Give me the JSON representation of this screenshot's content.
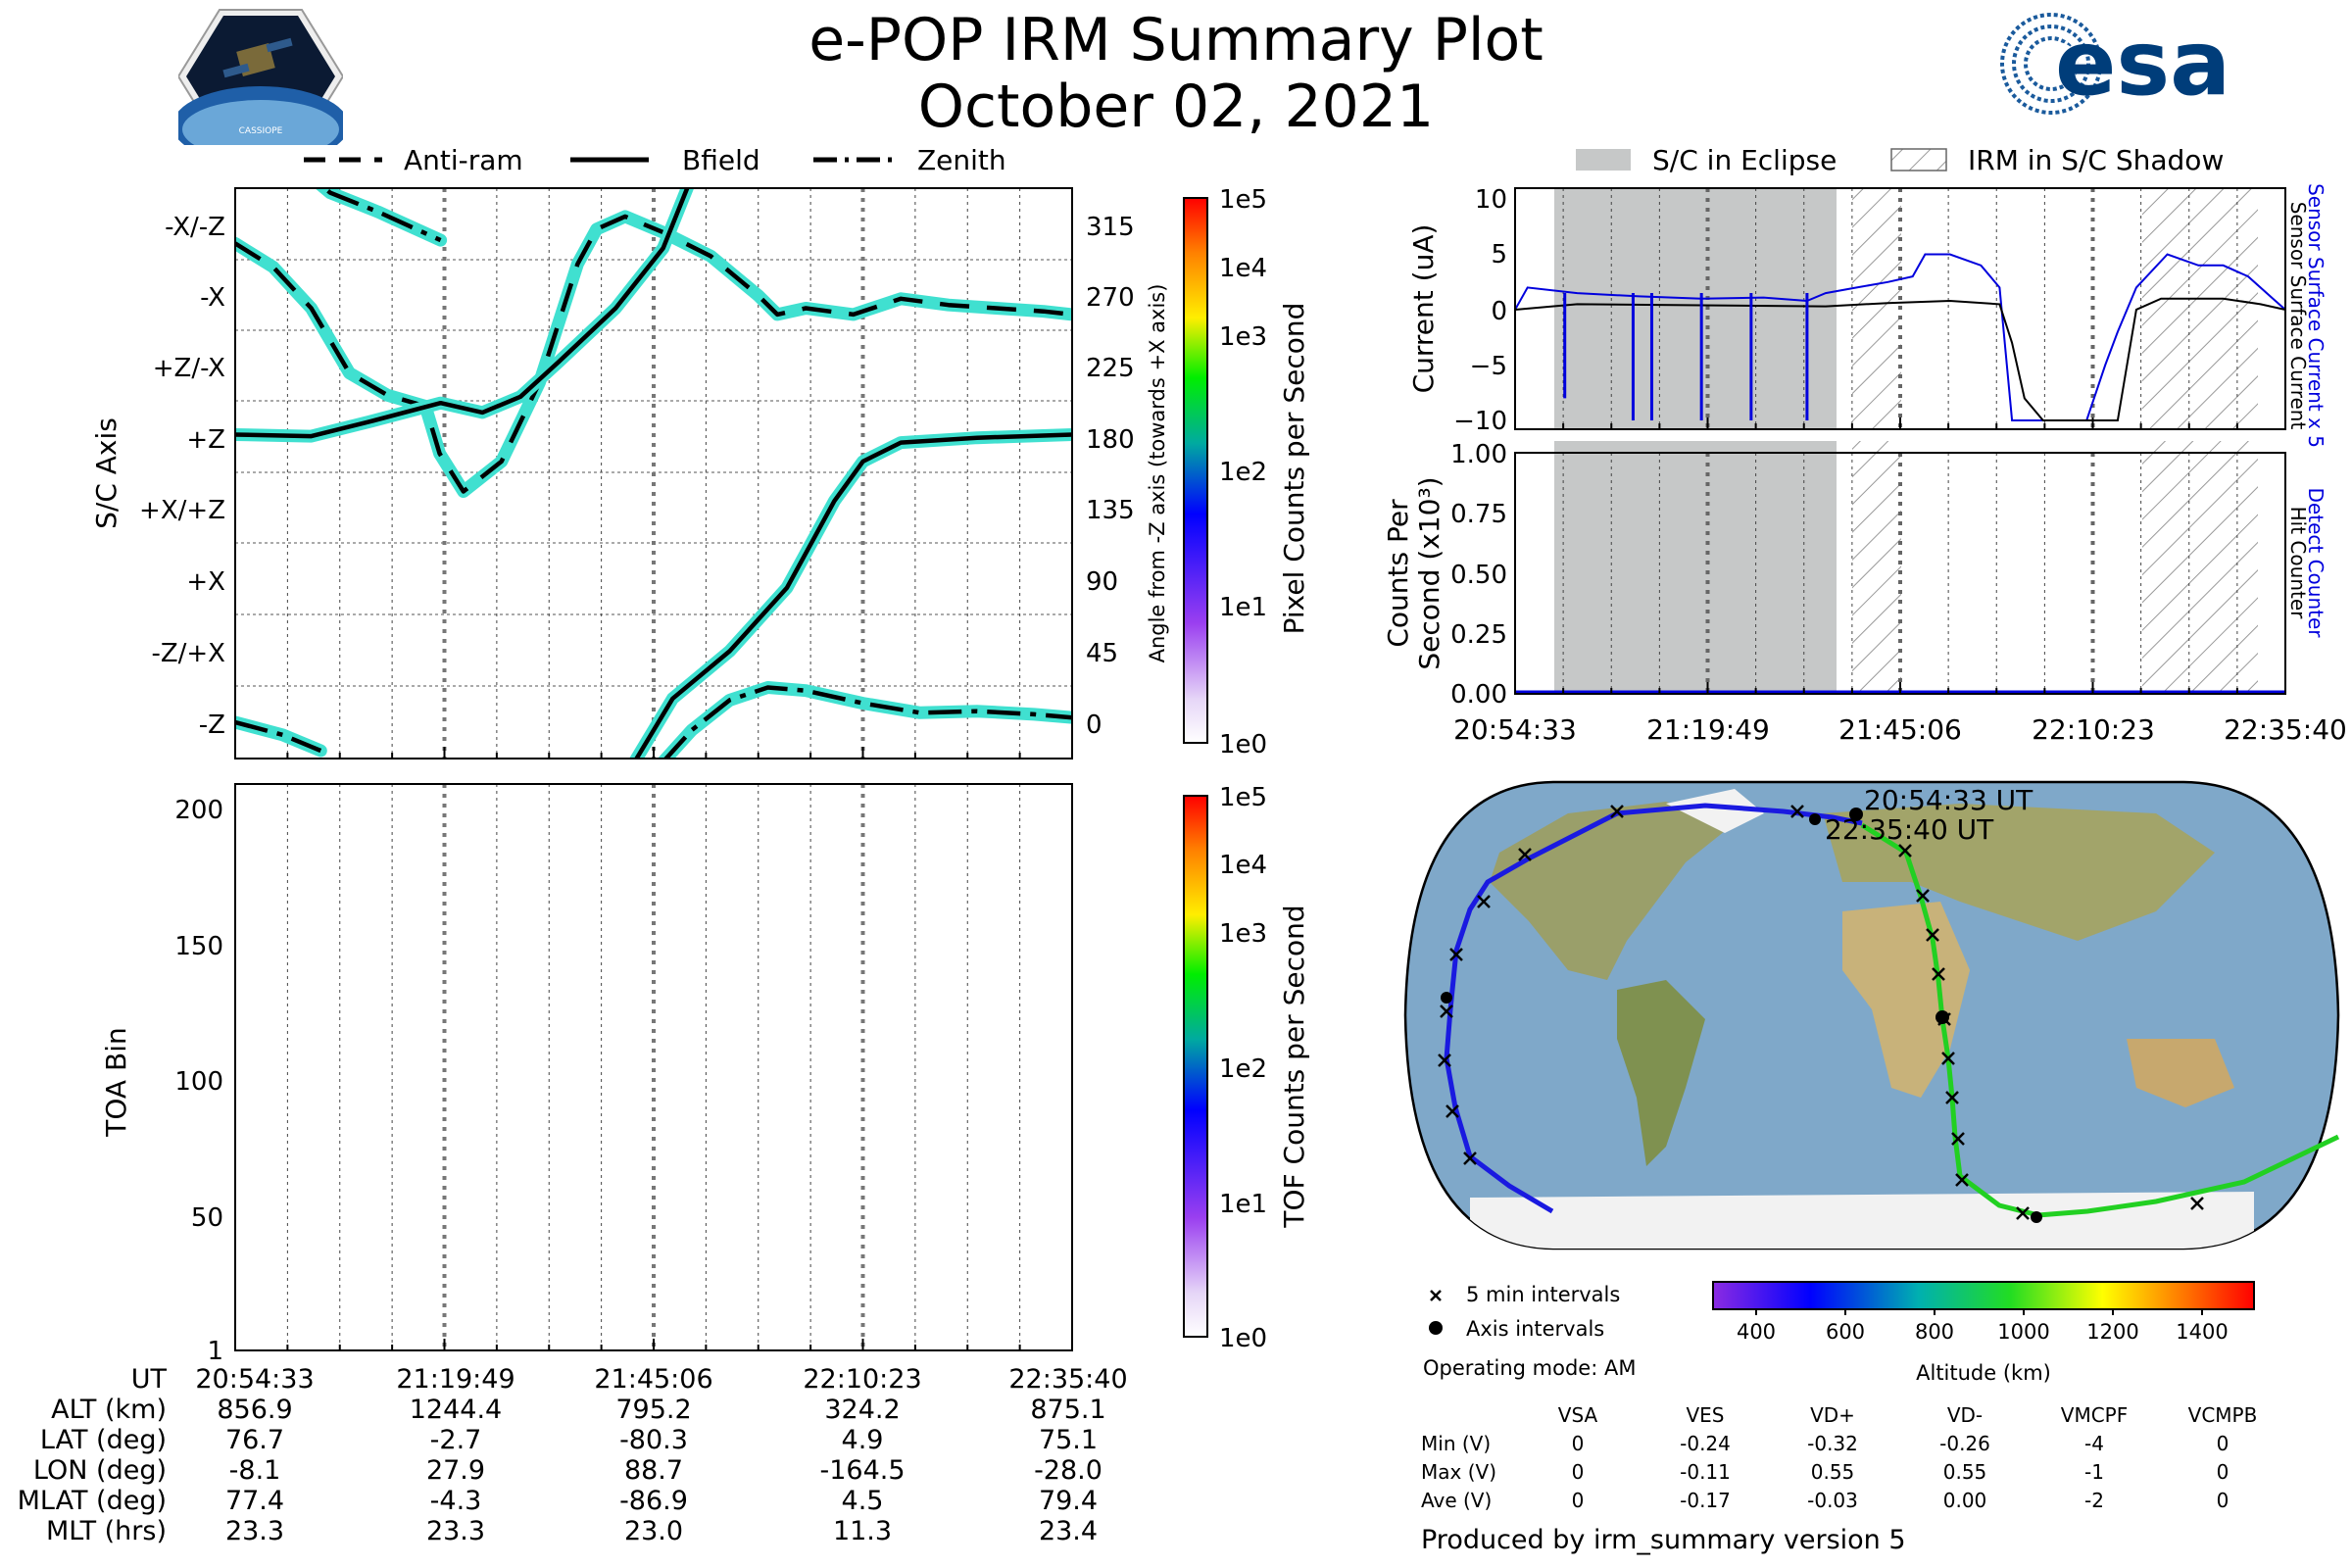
{
  "title": "e-POP IRM Summary Plot",
  "date": "October 02, 2021",
  "logos": {
    "cassiope": "CASSIOPE",
    "esa": "esa"
  },
  "top_legend": [
    "Anti-ram",
    "Bfield",
    "Zenith"
  ],
  "right_legend": [
    "S/C in Eclipse",
    "IRM in S/C Shadow"
  ],
  "colors": {
    "line_fill": "#40e0d0",
    "sensor_current": "#0000dd",
    "surface_current": "#000000",
    "eclipse": "#c6c8c8"
  },
  "time_ticks": [
    "20:54:33",
    "21:19:49",
    "21:45:06",
    "22:10:23",
    "22:35:40"
  ],
  "cbar_ticks": [
    "1e5",
    "1e4",
    "1e3",
    "1e2",
    "1e1",
    "1e0"
  ],
  "panel_axis": {
    "ylabel_left": "S/C Axis",
    "ylabel_right": "Angle from -Z axis (towards +X axis)",
    "cbar_label": "Pixel Counts per Second",
    "left_ticks": [
      "-X/-Z",
      "-X",
      "+Z/-X",
      "+Z",
      "+X/+Z",
      "+X",
      "-Z/+X",
      "-Z"
    ],
    "right_ticks": [
      "315",
      "270",
      "225",
      "180",
      "135",
      "90",
      "45",
      "0"
    ]
  },
  "panel_toa": {
    "ylabel": "TOA Bin",
    "cbar_label": "TOF Counts per Second",
    "ticks": [
      "200",
      "150",
      "100",
      "50",
      "1"
    ]
  },
  "panel_current": {
    "ylabel": "Current (uA)",
    "ticks": [
      "10",
      "5",
      "0",
      "−10",
      "−5"
    ],
    "right_label_1": "Sensor Surface Current x 5",
    "right_label_2": "Sensor Surface Current"
  },
  "panel_counts": {
    "ylabel_1": "Counts Per",
    "ylabel_2": "Second (x10³)",
    "ticks": [
      "1.00",
      "0.75",
      "0.50",
      "0.25",
      "0.00"
    ],
    "right_label_1": "Detect Counter",
    "right_label_2": "Hit Counter"
  },
  "map": {
    "start_label": "20:54:33 UT",
    "end_label": "22:35:40 UT",
    "legend_5min": "5 min intervals",
    "legend_axis": "Axis intervals",
    "operating_mode": "Operating mode: AM",
    "altitude_label": "Altitude (km)",
    "altitude_ticks": [
      "400",
      "600",
      "800",
      "1000",
      "1200",
      "1400"
    ]
  },
  "ephemeris": {
    "labels": [
      "UT",
      "ALT (km)",
      "LAT (deg)",
      "LON (deg)",
      "MLAT (deg)",
      "MLT (hrs)"
    ],
    "columns": [
      [
        "20:54:33",
        "856.9",
        "76.7",
        "-8.1",
        "77.4",
        "23.3"
      ],
      [
        "21:19:49",
        "1244.4",
        "-2.7",
        "27.9",
        "-4.3",
        "23.3"
      ],
      [
        "21:45:06",
        "795.2",
        "-80.3",
        "88.7",
        "-86.9",
        "23.0"
      ],
      [
        "22:10:23",
        "324.2",
        "4.9",
        "-164.5",
        "4.5",
        "11.3"
      ],
      [
        "22:35:40",
        "875.1",
        "75.1",
        "-28.0",
        "79.4",
        "23.4"
      ]
    ]
  },
  "voltages": {
    "headers": [
      "VSA",
      "VES",
      "VD+",
      "VD-",
      "VMCPF",
      "VCMPB"
    ],
    "rows": [
      {
        "label": "Min (V)",
        "values": [
          "0",
          "-0.24",
          "-0.32",
          "-0.26",
          "-4",
          "0"
        ]
      },
      {
        "label": "Max (V)",
        "values": [
          "0",
          "-0.11",
          "0.55",
          "0.55",
          "-1",
          "0"
        ]
      },
      {
        "label": "Ave (V)",
        "values": [
          "0",
          "-0.17",
          "-0.03",
          "0.00",
          "-2",
          "0"
        ]
      }
    ]
  },
  "footer": "Produced by irm_summary version 5",
  "chart_data": [
    {
      "type": "line",
      "name": "S/C axis angles",
      "ylim": [
        -15,
        340
      ],
      "series": [
        {
          "name": "Anti-ram",
          "points": [
            [
              0,
              303
            ],
            [
              4,
              288
            ],
            [
              8,
              262
            ],
            [
              12,
              221
            ],
            [
              16,
              207
            ],
            [
              20,
              200
            ],
            [
              21.5,
              170
            ],
            [
              24,
              146
            ],
            [
              28,
              165
            ],
            [
              32,
              215
            ],
            [
              36,
              290
            ],
            [
              38,
              312
            ],
            [
              41,
              320
            ],
            [
              45,
              310
            ],
            [
              50,
              295
            ],
            [
              55,
              270
            ],
            [
              57,
              258
            ],
            [
              60,
              262
            ],
            [
              65,
              258
            ],
            [
              70,
              268
            ],
            [
              75,
              264
            ],
            [
              80,
              262
            ],
            [
              85,
              260
            ],
            [
              88,
              258
            ]
          ]
        },
        {
          "name": "Bfield",
          "points": [
            [
              0,
              182
            ],
            [
              8,
              181
            ],
            [
              14,
              190
            ],
            [
              21.6,
              202
            ],
            [
              26,
              196
            ],
            [
              30,
              206
            ],
            [
              34,
              228
            ],
            [
              40,
              262
            ],
            [
              45,
              300
            ],
            [
              48,
              345
            ]
          ]
        },
        {
          "name": "Bfield",
          "points": [
            [
              42,
              -25
            ],
            [
              46,
              15
            ],
            [
              52,
              45
            ],
            [
              58,
              85
            ],
            [
              63,
              140
            ],
            [
              66,
              165
            ],
            [
              70,
              177
            ],
            [
              78,
              180
            ],
            [
              88,
              182
            ]
          ]
        },
        {
          "name": "Zenith",
          "points": [
            [
              5,
              360
            ],
            [
              10,
              335
            ],
            [
              15,
              323
            ],
            [
              21.6,
              305
            ]
          ]
        },
        {
          "name": "Zenith",
          "points": [
            [
              0,
              0
            ],
            [
              5,
              -8
            ],
            [
              9,
              -18
            ]
          ]
        },
        {
          "name": "Zenith",
          "points": [
            [
              45,
              -25
            ],
            [
              48,
              -5
            ],
            [
              52,
              14
            ],
            [
              56,
              22
            ],
            [
              60,
              20
            ],
            [
              66,
              12
            ],
            [
              72,
              6
            ],
            [
              78,
              7
            ],
            [
              84,
              5
            ],
            [
              88,
              3
            ]
          ]
        }
      ]
    },
    {
      "type": "line",
      "name": "Sensor currents",
      "ylim": [
        -11,
        11
      ],
      "series": [
        {
          "name": "Sensor Surface Current x 5",
          "points": [
            [
              0,
              0
            ],
            [
              2,
              2
            ],
            [
              10,
              1.5
            ],
            [
              20,
              1.2
            ],
            [
              30,
              1
            ],
            [
              40,
              1.1
            ],
            [
              47,
              0.8
            ],
            [
              50,
              1.5
            ],
            [
              55,
              2
            ],
            [
              60,
              2.5
            ],
            [
              64,
              3
            ],
            [
              66,
              5
            ],
            [
              70,
              5
            ],
            [
              75,
              4
            ],
            [
              78,
              2
            ],
            [
              80,
              -10
            ],
            [
              85,
              -10
            ],
            [
              92,
              -10
            ],
            [
              95,
              -5
            ],
            [
              97,
              -2
            ],
            [
              100,
              2
            ],
            [
              105,
              5
            ],
            [
              110,
              4
            ],
            [
              114,
              4
            ],
            [
              118,
              3
            ],
            [
              122,
              1
            ],
            [
              124,
              0
            ]
          ]
        },
        {
          "name": "Sensor Surface Current",
          "points": [
            [
              0,
              0
            ],
            [
              10,
              0.5
            ],
            [
              30,
              0.4
            ],
            [
              50,
              0.3
            ],
            [
              60,
              0.6
            ],
            [
              70,
              0.8
            ],
            [
              78,
              0.5
            ],
            [
              80,
              -3
            ],
            [
              82,
              -8
            ],
            [
              85,
              -10
            ],
            [
              97,
              -10
            ],
            [
              100,
              0
            ],
            [
              104,
              1
            ],
            [
              114,
              1
            ],
            [
              120,
              0.5
            ],
            [
              124,
              0
            ]
          ]
        }
      ]
    },
    {
      "type": "line",
      "name": "Detect Counter / Hit Counter",
      "ylim": [
        0,
        1
      ],
      "series": [
        {
          "name": "Detect Counter",
          "points": [
            [
              0,
              0
            ],
            [
              124,
              0
            ]
          ]
        }
      ]
    },
    {
      "type": "heatmap",
      "name": "TOA Bin",
      "ylim": [
        1,
        210
      ],
      "values": []
    }
  ]
}
